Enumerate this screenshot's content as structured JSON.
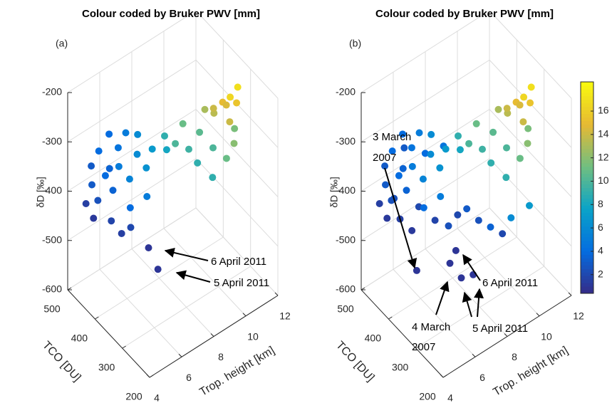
{
  "chart_data": [
    {
      "type": "scatter3d",
      "title": "Colour coded by Bruker PWV [mm]",
      "panel_label": "(a)",
      "x_label": "Trop. height [km]",
      "y_label": "TCO [DU]",
      "z_label": "δD [‰]",
      "xlim": [
        4,
        12
      ],
      "xticks": [
        4,
        6,
        8,
        10,
        12
      ],
      "ylim": [
        200,
        500
      ],
      "yticks": [
        200,
        300,
        400,
        500
      ],
      "zlim": [
        -600,
        -200
      ],
      "zticks": [
        -600,
        -500,
        -400,
        -300,
        -200
      ],
      "grid": true,
      "colormap": "parula",
      "clim": [
        0.4,
        18.5
      ],
      "colorbar": false,
      "x": [
        5.0,
        5.2,
        5.5,
        5.8,
        6.0,
        6.3,
        5.6,
        6.5,
        6.8,
        5.3,
        4.8,
        5.1,
        6.2,
        7.0,
        6.6,
        7.2,
        5.9,
        6.9,
        7.4,
        6.1,
        6.0,
        6.4,
        5.7,
        8.0,
        8.5,
        9.0,
        8.8,
        9.5,
        9.2,
        10.0,
        10.5,
        9.8,
        10.8,
        8.3,
        11.0,
        10.2,
        10.6,
        10.9,
        11.2,
        10.4,
        11.0,
        10.0,
        11.3,
        10.7,
        7.0,
        7.5
      ],
      "y": [
        470,
        460,
        450,
        440,
        430,
        450,
        480,
        420,
        410,
        490,
        480,
        470,
        400,
        420,
        440,
        400,
        460,
        380,
        390,
        470,
        420,
        410,
        440,
        380,
        370,
        350,
        360,
        340,
        330,
        320,
        300,
        310,
        290,
        390,
        300,
        330,
        320,
        310,
        300,
        340,
        330,
        350,
        310,
        300,
        380,
        375
      ],
      "z": [
        -390,
        -420,
        -370,
        -400,
        -350,
        -330,
        -340,
        -380,
        -330,
        -370,
        -430,
        -460,
        -420,
        -300,
        -300,
        -360,
        -300,
        -400,
        -320,
        -380,
        -480,
        -470,
        -460,
        -300,
        -320,
        -330,
        -280,
        -300,
        -350,
        -330,
        -350,
        -380,
        -320,
        -340,
        -300,
        -260,
        -250,
        -240,
        -220,
        -280,
        -270,
        -270,
        -260,
        -280,
        -506,
        -557
      ],
      "c": [
        3,
        2.5,
        4,
        3.5,
        5,
        4.5,
        4,
        5.5,
        6,
        3,
        1.5,
        1.2,
        4,
        6,
        5,
        6.5,
        4,
        5,
        7,
        3.5,
        1.5,
        2,
        1.8,
        9,
        10,
        9.5,
        11,
        10.5,
        9,
        10,
        11,
        9,
        12,
        8,
        11.5,
        14,
        15,
        16.5,
        17,
        13.5,
        14.5,
        13,
        15.5,
        14,
        1,
        1
      ],
      "annotations": [
        {
          "text": [
            "6 April 2011"
          ]
        },
        {
          "text": [
            "5 April 2011"
          ]
        }
      ]
    },
    {
      "type": "scatter3d",
      "title": "Colour coded by Bruker PWV [mm]",
      "panel_label": "(b)",
      "x_label": "Trop. height [km]",
      "y_label": "TCO [DU]",
      "z_label": "δD [‰]",
      "xlim": [
        4,
        12
      ],
      "xticks": [
        4,
        6,
        8,
        10,
        12
      ],
      "ylim": [
        200,
        500
      ],
      "yticks": [
        200,
        300,
        400,
        500
      ],
      "zlim": [
        -600,
        -200
      ],
      "zticks": [
        -600,
        -500,
        -400,
        -300,
        -200
      ],
      "grid": true,
      "colormap": "parula",
      "clim": [
        0.4,
        18.5
      ],
      "colorbar": true,
      "cticks": [
        2,
        4,
        6,
        8,
        10,
        12,
        14,
        16
      ],
      "x": [
        5.0,
        5.2,
        5.5,
        5.8,
        6.0,
        6.3,
        5.6,
        6.5,
        6.8,
        5.3,
        4.8,
        5.1,
        6.2,
        7.0,
        6.6,
        7.2,
        5.9,
        6.9,
        7.4,
        6.1,
        8.0,
        8.5,
        9.0,
        8.8,
        9.5,
        9.2,
        10.0,
        10.5,
        9.8,
        10.8,
        8.3,
        11.0,
        10.2,
        10.6,
        10.9,
        11.2,
        10.4,
        11.0,
        10.0,
        11.3,
        10.7,
        5.4,
        5.8,
        6.4,
        6.9,
        7.4,
        7.8,
        8.2,
        8.6,
        9.0,
        9.4,
        5.2,
        6.0,
        6.8,
        7.6,
        9.6,
        10.4,
        6.44,
        7.69,
        8.0,
        8.2,
        8.6
      ],
      "y": [
        470,
        460,
        450,
        440,
        430,
        450,
        480,
        420,
        410,
        490,
        480,
        470,
        400,
        420,
        440,
        400,
        460,
        380,
        390,
        470,
        380,
        370,
        350,
        360,
        340,
        330,
        320,
        300,
        310,
        290,
        390,
        300,
        330,
        320,
        310,
        300,
        340,
        330,
        350,
        310,
        300,
        440,
        420,
        430,
        400,
        380,
        370,
        360,
        340,
        320,
        300,
        450,
        460,
        430,
        410,
        280,
        260,
        440,
        370,
        410,
        380,
        360
      ],
      "z": [
        -390,
        -420,
        -370,
        -400,
        -350,
        -330,
        -340,
        -380,
        -330,
        -370,
        -430,
        -460,
        -420,
        -300,
        -300,
        -360,
        -300,
        -400,
        -320,
        -380,
        -300,
        -320,
        -330,
        -280,
        -300,
        -350,
        -330,
        -350,
        -380,
        -320,
        -340,
        -300,
        -260,
        -250,
        -240,
        -220,
        -280,
        -270,
        -270,
        -260,
        -280,
        -450,
        -470,
        -440,
        -460,
        -470,
        -450,
        -440,
        -460,
        -470,
        -480,
        -410,
        -330,
        -340,
        -330,
        -440,
        -420,
        -576,
        -520,
        -576,
        -592,
        -582
      ],
      "c": [
        3,
        2.5,
        4,
        3.5,
        5,
        4.5,
        4,
        5.5,
        6,
        3,
        1.5,
        1.2,
        4,
        6,
        5,
        6.5,
        4,
        5,
        7,
        3.5,
        9,
        10,
        9.5,
        11,
        10.5,
        9,
        10,
        11,
        9,
        12,
        8,
        11.5,
        14,
        15,
        16.5,
        17,
        13.5,
        14.5,
        13,
        15.5,
        14,
        1.5,
        1.2,
        2,
        1.8,
        2.5,
        2,
        3,
        2.5,
        3.5,
        2,
        2.5,
        3,
        4,
        4.5,
        6,
        7,
        1,
        1,
        1,
        1,
        1
      ],
      "annotations": [
        {
          "text": [
            "3 March",
            "2007"
          ]
        },
        {
          "text": [
            "6 April 2011"
          ]
        },
        {
          "text": [
            "4 March",
            "2007"
          ]
        },
        {
          "text": [
            "5 April 2011"
          ]
        }
      ]
    }
  ]
}
